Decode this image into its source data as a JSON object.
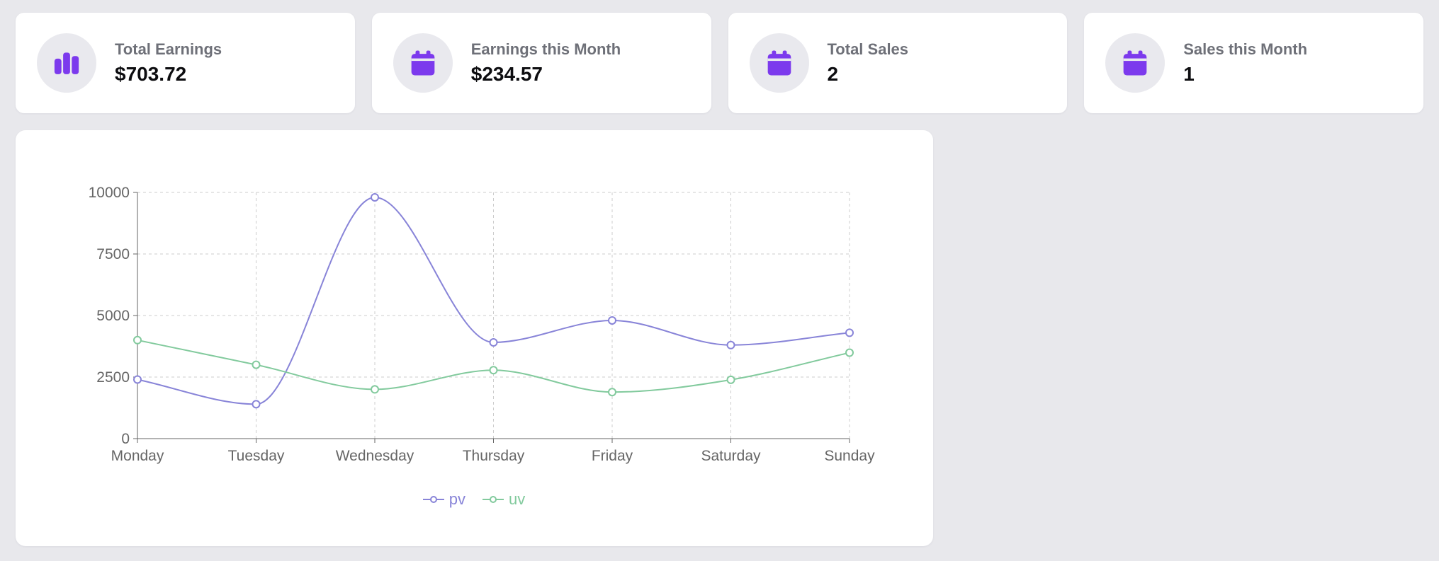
{
  "page": {
    "background": "#e8e8ec"
  },
  "theme": {
    "accent": "#7c3aed",
    "icon_circle_bg": "#e9e9ee"
  },
  "stat_cards": [
    {
      "id": "total-earnings",
      "label": "Total Earnings",
      "value": "$703.72",
      "icon": "bar-chart-icon"
    },
    {
      "id": "earnings-this-month",
      "label": "Earnings this Month",
      "value": "$234.57",
      "icon": "calendar-icon"
    },
    {
      "id": "total-sales",
      "label": "Total Sales",
      "value": "2",
      "icon": "calendar-icon"
    },
    {
      "id": "sales-this-month",
      "label": "Sales this Month",
      "value": "1",
      "icon": "calendar-icon"
    }
  ],
  "chart_data": {
    "type": "line",
    "curve": "monotone",
    "categories": [
      "Monday",
      "Tuesday",
      "Wednesday",
      "Thursday",
      "Friday",
      "Saturday",
      "Sunday"
    ],
    "series": [
      {
        "name": "pv",
        "color": "#8884d8",
        "values": [
          2400,
          1398,
          9800,
          3908,
          4800,
          3800,
          4300
        ]
      },
      {
        "name": "uv",
        "color": "#82ca9d",
        "values": [
          4000,
          3000,
          2000,
          2780,
          1890,
          2390,
          3490
        ]
      }
    ],
    "ylim": [
      0,
      10000
    ],
    "yticks": [
      0,
      2500,
      5000,
      7500,
      10000
    ],
    "grid": "dashed",
    "legend_position": "bottom"
  }
}
